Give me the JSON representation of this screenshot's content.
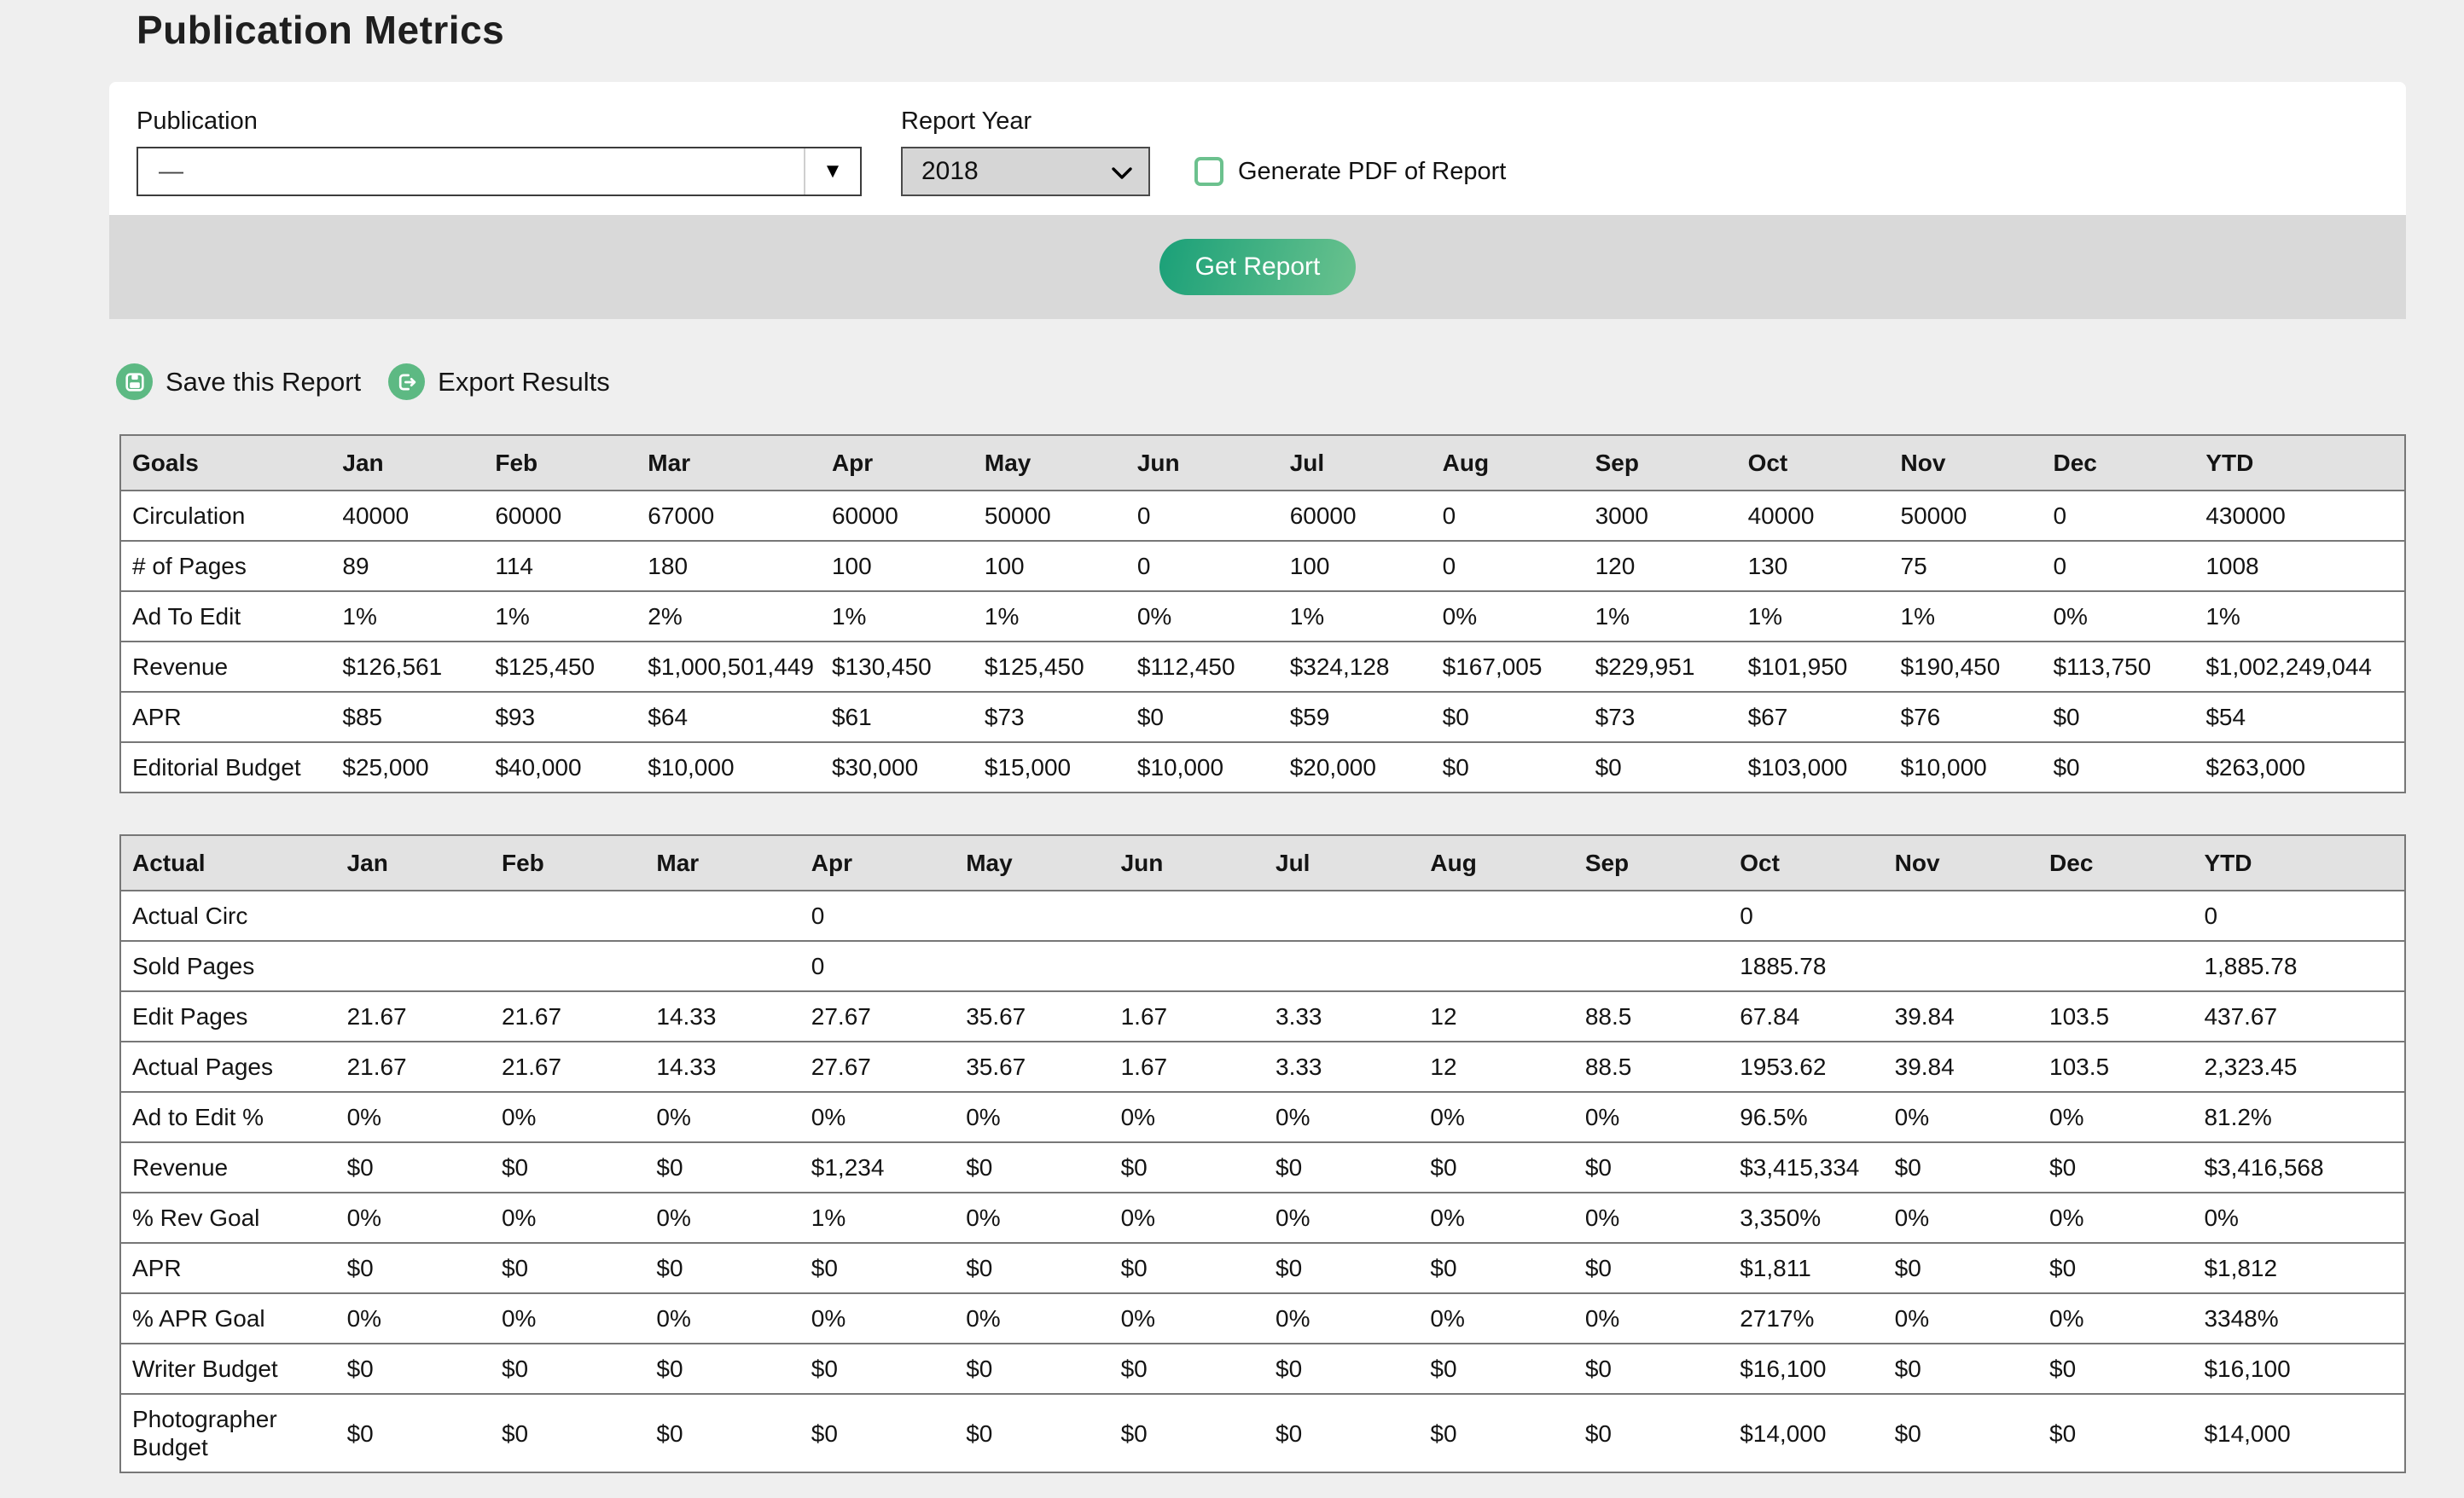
{
  "page": {
    "title": "Publication Metrics"
  },
  "form": {
    "publication_label": "Publication",
    "publication_value": "—",
    "report_year_label": "Report Year",
    "report_year_value": "2018",
    "generate_pdf_label": "Generate PDF of Report",
    "generate_pdf_checked": false,
    "get_report_label": "Get Report"
  },
  "actions": {
    "save_label": "Save this Report",
    "export_label": "Export Results"
  },
  "colors": {
    "accent_green": "#5db983",
    "button_gradient_start": "#1aa078",
    "button_gradient_end": "#6ac28e",
    "checkbox_border": "#6cc18e"
  },
  "months": [
    "Jan",
    "Feb",
    "Mar",
    "Apr",
    "May",
    "Jun",
    "Jul",
    "Aug",
    "Sep",
    "Oct",
    "Nov",
    "Dec",
    "YTD"
  ],
  "goals_table": {
    "header": "Goals",
    "rows": [
      {
        "label": "Circulation",
        "values": [
          "40000",
          "60000",
          "67000",
          "60000",
          "50000",
          "0",
          "60000",
          "0",
          "3000",
          "40000",
          "50000",
          "0",
          "430000"
        ]
      },
      {
        "label": "# of Pages",
        "values": [
          "89",
          "114",
          "180",
          "100",
          "100",
          "0",
          "100",
          "0",
          "120",
          "130",
          "75",
          "0",
          "1008"
        ]
      },
      {
        "label": "Ad To Edit",
        "values": [
          "1%",
          "1%",
          "2%",
          "1%",
          "1%",
          "0%",
          "1%",
          "0%",
          "1%",
          "1%",
          "1%",
          "0%",
          "1%"
        ]
      },
      {
        "label": "Revenue",
        "values": [
          "$126,561",
          "$125,450",
          "$1,000,501,449",
          "$130,450",
          "$125,450",
          "$112,450",
          "$324,128",
          "$167,005",
          "$229,951",
          "$101,950",
          "$190,450",
          "$113,750",
          "$1,002,249,044"
        ]
      },
      {
        "label": "APR",
        "values": [
          "$85",
          "$93",
          "$64",
          "$61",
          "$73",
          "$0",
          "$59",
          "$0",
          "$73",
          "$67",
          "$76",
          "$0",
          "$54"
        ]
      },
      {
        "label": "Editorial Budget",
        "values": [
          "$25,000",
          "$40,000",
          "$10,000",
          "$30,000",
          "$15,000",
          "$10,000",
          "$20,000",
          "$0",
          "$0",
          "$103,000",
          "$10,000",
          "$0",
          "$263,000"
        ]
      }
    ]
  },
  "actual_table": {
    "header": "Actual",
    "rows": [
      {
        "label": "Actual Circ",
        "values": [
          "",
          "",
          "",
          "0",
          "",
          "",
          "",
          "",
          "",
          "0",
          "",
          "",
          "0"
        ]
      },
      {
        "label": "Sold Pages",
        "values": [
          "",
          "",
          "",
          "0",
          "",
          "",
          "",
          "",
          "",
          "1885.78",
          "",
          "",
          "1,885.78"
        ]
      },
      {
        "label": "Edit Pages",
        "values": [
          "21.67",
          "21.67",
          "14.33",
          "27.67",
          "35.67",
          "1.67",
          "3.33",
          "12",
          "88.5",
          "67.84",
          "39.84",
          "103.5",
          "437.67"
        ]
      },
      {
        "label": "Actual Pages",
        "values": [
          "21.67",
          "21.67",
          "14.33",
          "27.67",
          "35.67",
          "1.67",
          "3.33",
          "12",
          "88.5",
          "1953.62",
          "39.84",
          "103.5",
          "2,323.45"
        ]
      },
      {
        "label": "Ad to Edit %",
        "values": [
          "0%",
          "0%",
          "0%",
          "0%",
          "0%",
          "0%",
          "0%",
          "0%",
          "0%",
          "96.5%",
          "0%",
          "0%",
          "81.2%"
        ]
      },
      {
        "label": "Revenue",
        "values": [
          "$0",
          "$0",
          "$0",
          "$1,234",
          "$0",
          "$0",
          "$0",
          "$0",
          "$0",
          "$3,415,334",
          "$0",
          "$0",
          "$3,416,568"
        ]
      },
      {
        "label": "% Rev Goal",
        "values": [
          "0%",
          "0%",
          "0%",
          "1%",
          "0%",
          "0%",
          "0%",
          "0%",
          "0%",
          "3,350%",
          "0%",
          "0%",
          "0%"
        ]
      },
      {
        "label": "APR",
        "values": [
          "$0",
          "$0",
          "$0",
          "$0",
          "$0",
          "$0",
          "$0",
          "$0",
          "$0",
          "$1,811",
          "$0",
          "$0",
          "$1,812"
        ]
      },
      {
        "label": "% APR Goal",
        "values": [
          "0%",
          "0%",
          "0%",
          "0%",
          "0%",
          "0%",
          "0%",
          "0%",
          "0%",
          "2717%",
          "0%",
          "0%",
          "3348%"
        ]
      },
      {
        "label": "Writer Budget",
        "values": [
          "$0",
          "$0",
          "$0",
          "$0",
          "$0",
          "$0",
          "$0",
          "$0",
          "$0",
          "$16,100",
          "$0",
          "$0",
          "$16,100"
        ]
      },
      {
        "label": "Photographer Budget",
        "values": [
          "$0",
          "$0",
          "$0",
          "$0",
          "$0",
          "$0",
          "$0",
          "$0",
          "$0",
          "$14,000",
          "$0",
          "$0",
          "$14,000"
        ]
      }
    ]
  }
}
